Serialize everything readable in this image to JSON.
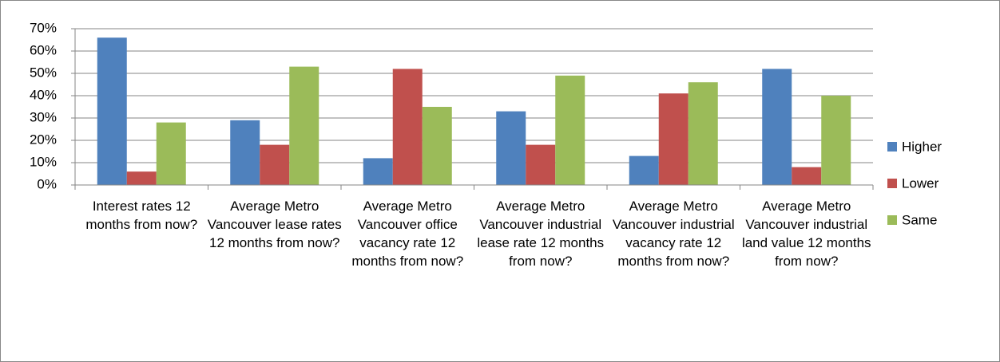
{
  "chart_data": {
    "type": "bar",
    "categories": [
      "Interest rates 12 months from now?",
      "Average Metro Vancouver lease rates 12 months from now?",
      "Average Metro Vancouver office vacancy rate 12 months from now?",
      "Average Metro Vancouver industrial lease rate 12 months from now?",
      "Average Metro Vancouver industrial vacancy rate 12 months from now?",
      "Average Metro Vancouver industrial land value 12 months from now?"
    ],
    "series": [
      {
        "name": "Higher",
        "color": "#4f81bd",
        "values": [
          66,
          29,
          12,
          33,
          13,
          52
        ]
      },
      {
        "name": "Lower",
        "color": "#c0504d",
        "values": [
          6,
          18,
          52,
          18,
          41,
          8
        ]
      },
      {
        "name": "Same",
        "color": "#9bbb59",
        "values": [
          28,
          53,
          35,
          49,
          46,
          40
        ]
      }
    ],
    "ylim": [
      0,
      70
    ],
    "yticks": [
      {
        "value": 0,
        "label": "0%"
      },
      {
        "value": 10,
        "label": "10%"
      },
      {
        "value": 20,
        "label": "20%"
      },
      {
        "value": 30,
        "label": "30%"
      },
      {
        "value": 40,
        "label": "40%"
      },
      {
        "value": 50,
        "label": "50%"
      },
      {
        "value": 60,
        "label": "60%"
      },
      {
        "value": 70,
        "label": "70%"
      }
    ],
    "grid": true,
    "legend": "right"
  }
}
